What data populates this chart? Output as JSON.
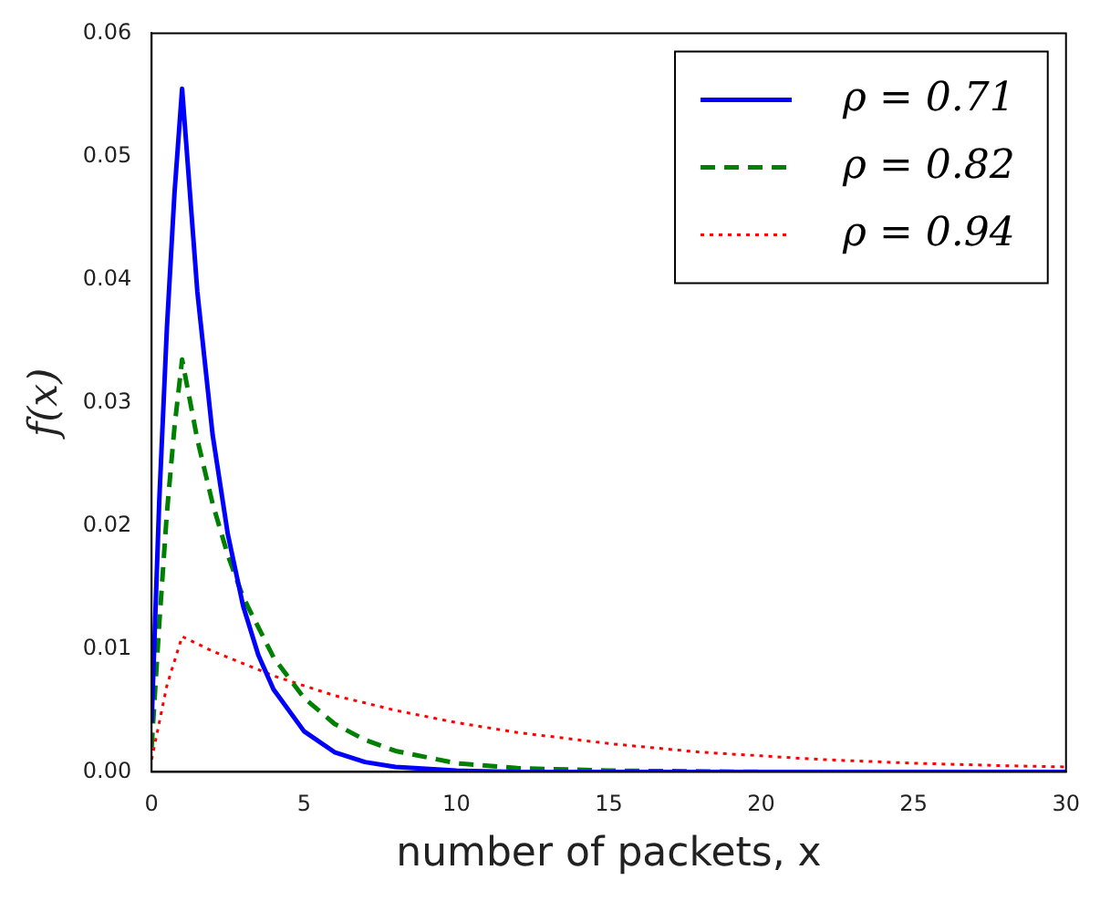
{
  "chart_data": {
    "type": "line",
    "xlabel": "number of packets, x",
    "ylabel": "f(x)",
    "xlim": [
      0,
      30
    ],
    "xticks": [
      0,
      5,
      10,
      15,
      20,
      25,
      30
    ],
    "ylim": [
      0,
      0.06
    ],
    "yticks": [
      {
        "value": 0,
        "label": "0.00"
      },
      {
        "value": 0.01,
        "label": "0.01"
      },
      {
        "value": 0.02,
        "label": "0.02"
      },
      {
        "value": 0.03,
        "label": "0.03"
      },
      {
        "value": 0.04,
        "label": "0.04"
      },
      {
        "value": 0.05,
        "label": "0.05"
      },
      {
        "value": 0.06,
        "label": "0.06"
      }
    ],
    "grid": false,
    "legend": "top right",
    "series": [
      {
        "name": "ρ = 0.71",
        "color": "#0000ff",
        "line_style": "solid",
        "x": [
          0,
          0.25,
          0.5,
          0.75,
          1,
          1.5,
          2,
          2.5,
          3,
          3.5,
          4,
          5,
          6,
          7,
          8,
          10,
          12,
          15,
          20,
          25,
          30
        ],
        "values": [
          0.004,
          0.022,
          0.036,
          0.047,
          0.0555,
          0.039,
          0.0274,
          0.0193,
          0.0135,
          0.0095,
          0.0067,
          0.0033,
          0.0016,
          0.0008,
          0.0004,
          0.0001,
          0,
          0,
          0,
          0,
          0
        ]
      },
      {
        "name": "ρ = 0.82",
        "color": "#008000",
        "line_style": "dashed",
        "x": [
          0,
          0.25,
          0.5,
          0.75,
          1,
          1.5,
          2,
          2.5,
          3,
          4,
          5,
          6,
          7,
          8,
          10,
          12,
          15,
          20,
          25,
          30
        ],
        "values": [
          0.002,
          0.012,
          0.021,
          0.028,
          0.0335,
          0.027,
          0.0218,
          0.0176,
          0.0142,
          0.0093,
          0.006,
          0.0039,
          0.0026,
          0.0017,
          0.0007,
          0.0003,
          0.0001,
          0,
          0,
          0
        ]
      },
      {
        "name": "ρ = 0.94",
        "color": "#ff0000",
        "line_style": "dotted",
        "x": [
          0,
          0.25,
          0.5,
          0.75,
          1,
          2,
          3,
          4,
          5,
          6,
          8,
          10,
          12,
          15,
          18,
          20,
          22,
          25,
          28,
          30
        ],
        "values": [
          0.001,
          0.004,
          0.007,
          0.009,
          0.011,
          0.0098,
          0.0088,
          0.0078,
          0.007,
          0.0062,
          0.005,
          0.004,
          0.0032,
          0.0023,
          0.0016,
          0.0013,
          0.001,
          0.0007,
          0.0005,
          0.0004
        ]
      }
    ]
  }
}
